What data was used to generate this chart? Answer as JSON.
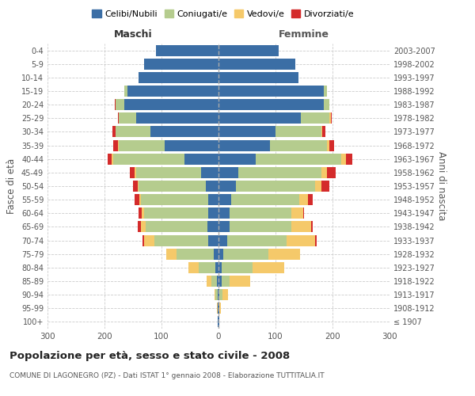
{
  "age_groups": [
    "100+",
    "95-99",
    "90-94",
    "85-89",
    "80-84",
    "75-79",
    "70-74",
    "65-69",
    "60-64",
    "55-59",
    "50-54",
    "45-49",
    "40-44",
    "35-39",
    "30-34",
    "25-29",
    "20-24",
    "15-19",
    "10-14",
    "5-9",
    "0-4"
  ],
  "birth_years": [
    "≤ 1907",
    "1908-1912",
    "1913-1917",
    "1918-1922",
    "1923-1927",
    "1928-1932",
    "1933-1937",
    "1938-1942",
    "1943-1947",
    "1948-1952",
    "1953-1957",
    "1958-1962",
    "1963-1967",
    "1968-1972",
    "1973-1977",
    "1978-1982",
    "1983-1987",
    "1988-1992",
    "1993-1997",
    "1998-2002",
    "2003-2007"
  ],
  "male": {
    "celibi": [
      1,
      1,
      2,
      3,
      5,
      8,
      18,
      20,
      18,
      18,
      22,
      30,
      60,
      95,
      120,
      145,
      165,
      160,
      140,
      130,
      110
    ],
    "coniugati": [
      0,
      1,
      3,
      10,
      30,
      65,
      95,
      108,
      112,
      118,
      118,
      115,
      125,
      80,
      60,
      30,
      15,
      5,
      0,
      0,
      0
    ],
    "vedovi": [
      0,
      1,
      2,
      8,
      18,
      18,
      18,
      8,
      5,
      3,
      2,
      2,
      2,
      2,
      1,
      0,
      0,
      0,
      0,
      0,
      0
    ],
    "divorziati": [
      0,
      0,
      0,
      0,
      0,
      0,
      2,
      5,
      5,
      8,
      8,
      8,
      8,
      8,
      5,
      2,
      2,
      0,
      0,
      0,
      0
    ]
  },
  "female": {
    "nubili": [
      1,
      1,
      2,
      5,
      5,
      8,
      15,
      20,
      20,
      22,
      30,
      35,
      65,
      90,
      100,
      145,
      185,
      185,
      140,
      135,
      105
    ],
    "coniugate": [
      0,
      1,
      5,
      15,
      55,
      80,
      105,
      108,
      108,
      120,
      140,
      145,
      150,
      100,
      80,
      50,
      10,
      5,
      0,
      0,
      0
    ],
    "vedove": [
      0,
      2,
      10,
      35,
      55,
      55,
      50,
      35,
      20,
      15,
      10,
      10,
      8,
      5,
      2,
      2,
      0,
      0,
      0,
      0,
      0
    ],
    "divorziate": [
      0,
      0,
      0,
      0,
      0,
      0,
      2,
      2,
      2,
      8,
      15,
      15,
      12,
      8,
      5,
      2,
      0,
      0,
      0,
      0,
      0
    ]
  },
  "colors": {
    "celibi_nubili": "#3B6EA5",
    "coniugati": "#B5CC8E",
    "vedovi": "#F5C96A",
    "divorziati": "#D42B2B"
  },
  "xlim": 300,
  "title": "Popolazione per età, sesso e stato civile - 2008",
  "subtitle": "COMUNE DI LAGONEGRO (PZ) - Dati ISTAT 1° gennaio 2008 - Elaborazione TUTTITALIA.IT",
  "ylabel": "Fasce di età",
  "ylabel_right": "Anni di nascita",
  "legend_labels": [
    "Celibi/Nubili",
    "Coniugati/e",
    "Vedovi/e",
    "Divorziati/e"
  ],
  "maschi_label": "Maschi",
  "femmine_label": "Femmine"
}
